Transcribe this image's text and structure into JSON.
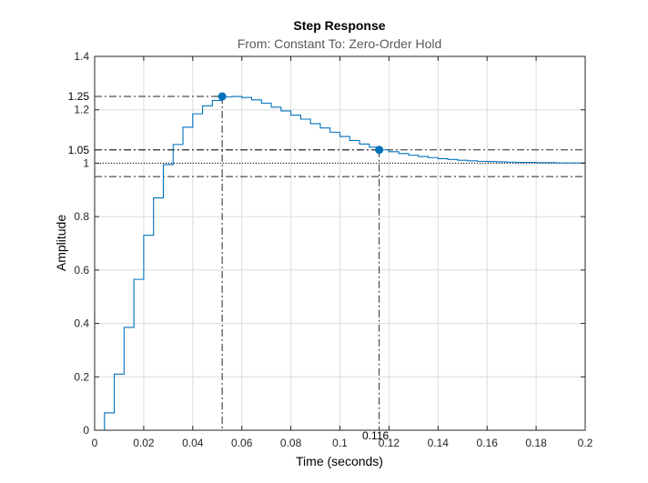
{
  "chart_data": {
    "type": "line",
    "title": "Step Response",
    "subtitle": "From: Constant  To: Zero-Order Hold",
    "xlabel": "Time (seconds)",
    "ylabel": "Amplitude",
    "xlim": [
      0,
      0.2
    ],
    "ylim": [
      0,
      1.4
    ],
    "xticks": [
      0,
      0.02,
      0.04,
      0.06,
      0.08,
      0.1,
      0.12,
      0.14,
      0.16,
      0.18,
      0.2
    ],
    "xtick_labels": [
      "0",
      "0.02",
      "0.04",
      "0.06",
      "0.08",
      "0.1",
      "0.12",
      "0.14",
      "0.16",
      "0.18",
      "0.2"
    ],
    "yticks": [
      0,
      0.2,
      0.4,
      0.6,
      0.8,
      1,
      1.2,
      1.4
    ],
    "ytick_labels": [
      "0",
      "0.2",
      "0.4",
      "0.6",
      "0.8",
      "1",
      "1.2",
      "1.4"
    ],
    "grid": true,
    "series": [
      {
        "style": "stairs",
        "color": "#0072bd",
        "x": [
          0,
          0.004,
          0.008,
          0.012,
          0.016,
          0.02,
          0.024,
          0.028,
          0.032,
          0.036,
          0.04,
          0.044,
          0.048,
          0.052,
          0.056,
          0.06,
          0.064,
          0.068,
          0.072,
          0.076,
          0.08,
          0.084,
          0.088,
          0.092,
          0.096,
          0.1,
          0.104,
          0.108,
          0.112,
          0.116,
          0.12,
          0.124,
          0.128,
          0.132,
          0.136,
          0.14,
          0.144,
          0.148,
          0.152,
          0.156,
          0.16,
          0.164,
          0.168,
          0.172,
          0.176,
          0.18,
          0.184,
          0.188,
          0.192,
          0.196,
          0.2
        ],
        "y": [
          0,
          0.065,
          0.21,
          0.385,
          0.565,
          0.73,
          0.87,
          0.995,
          1.07,
          1.135,
          1.185,
          1.215,
          1.235,
          1.248,
          1.25,
          1.246,
          1.237,
          1.225,
          1.21,
          1.196,
          1.18,
          1.165,
          1.148,
          1.132,
          1.116,
          1.1,
          1.085,
          1.072,
          1.06,
          1.05,
          1.043,
          1.036,
          1.03,
          1.025,
          1.021,
          1.017,
          1.014,
          1.011,
          1.009,
          1.007,
          1.006,
          1.005,
          1.004,
          1.003,
          1.003,
          1.002,
          1.002,
          1.001,
          1.001,
          1.001,
          1.001
        ]
      }
    ],
    "reference_lines": {
      "steady_state": 1,
      "settling_band": [
        0.95,
        1.05
      ],
      "peak_level": 1.25
    },
    "markers": [
      {
        "name": "peak",
        "x": 0.052,
        "y": 1.25,
        "label": "1.25",
        "color": "#0072bd"
      },
      {
        "name": "settling",
        "x": 0.116,
        "y": 1.05,
        "label": "1.05",
        "x_label": "0.116",
        "color": "#0072bd"
      }
    ]
  }
}
